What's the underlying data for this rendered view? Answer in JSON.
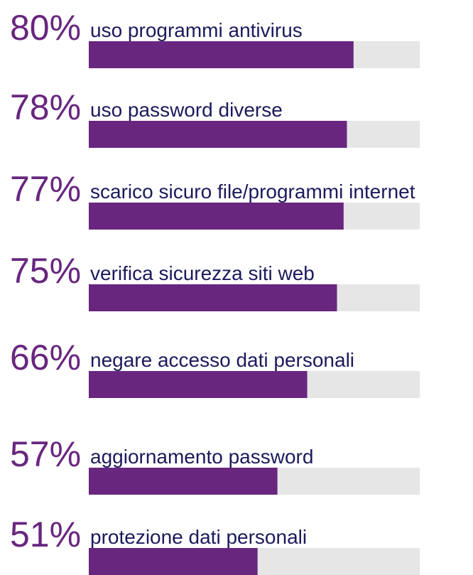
{
  "chart_data": {
    "type": "bar",
    "categories": [
      "uso programmi antivirus",
      "uso password diverse",
      "scarico sicuro file/programmi internet",
      "verifica sicurezza siti web",
      "negare accesso dati personali",
      "aggiornamento password",
      "protezione dati personali"
    ],
    "values": [
      80,
      78,
      77,
      75,
      66,
      57,
      51
    ],
    "value_labels": [
      "80%",
      "78%",
      "77%",
      "75%",
      "66%",
      "57%",
      "51%"
    ],
    "color": "#68267f",
    "xlim": [
      0,
      100
    ]
  }
}
